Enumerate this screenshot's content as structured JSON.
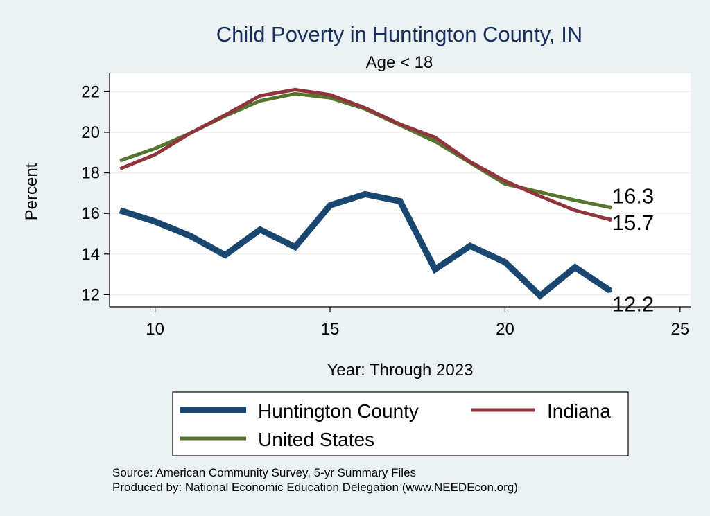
{
  "chart_data": {
    "type": "line",
    "title": "Child Poverty in Huntington County, IN",
    "subtitle": "Age < 18",
    "xlabel": "Year: Through 2023",
    "ylabel": "Percent",
    "xlim": [
      8.7,
      25.3
    ],
    "ylim": [
      11.4,
      22.9
    ],
    "x_ticks": [
      10,
      15,
      20,
      25
    ],
    "y_ticks": [
      12,
      14,
      16,
      18,
      20,
      22
    ],
    "grid": true,
    "legend_position": "bottom",
    "x": [
      9,
      10,
      11,
      12,
      13,
      14,
      15,
      16,
      17,
      18,
      19,
      20,
      21,
      22,
      23
    ],
    "series": [
      {
        "name": "Huntington County",
        "color": "#1a476f",
        "values": [
          16.15,
          15.6,
          14.9,
          13.95,
          15.2,
          14.35,
          16.4,
          16.95,
          16.6,
          13.25,
          14.4,
          13.6,
          11.95,
          13.35,
          12.2
        ],
        "end_label": "12.2"
      },
      {
        "name": "Indiana",
        "color": "#90353b",
        "values": [
          18.2,
          18.9,
          19.95,
          20.85,
          21.8,
          22.1,
          21.85,
          21.2,
          20.4,
          19.75,
          18.55,
          17.6,
          16.85,
          16.15,
          15.7
        ],
        "end_label": "15.7"
      },
      {
        "name": "United States",
        "color": "#55752f",
        "values": [
          18.6,
          19.2,
          19.95,
          20.8,
          21.55,
          21.9,
          21.7,
          21.15,
          20.35,
          19.55,
          18.5,
          17.45,
          17.05,
          16.65,
          16.3
        ],
        "end_label": "16.3"
      }
    ]
  },
  "source_line1": "Source: American Community Survey, 5-yr Summary Files",
  "source_line2": "Produced by: National Economic Education Delegation (www.NEEDEcon.org)"
}
